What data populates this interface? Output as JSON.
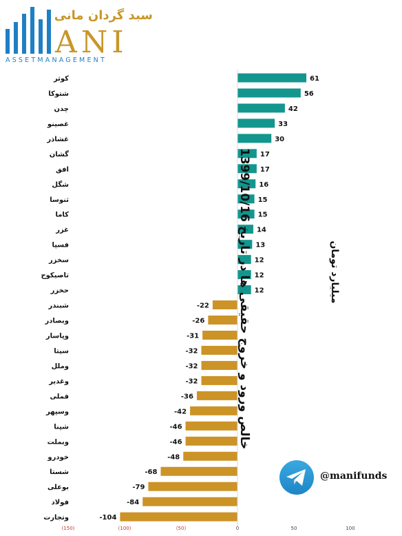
{
  "logo": {
    "persian_text": "سبد گردان مانی",
    "wordmark": "ANI",
    "tagline": "ASSETMANAGEMENT",
    "color": "#1e7fc4",
    "accent": "#c8962a"
  },
  "titles": {
    "main": "خالص ورود و خروج حقیقی ها در تاریخ 1399/10/16",
    "unit": "میلیارد تومان"
  },
  "social": {
    "icon": "telegram-icon",
    "handle": "@manifunds"
  },
  "colors": {
    "positive": "#13968e",
    "negative": "#cc9326",
    "axis_tick": "#c0392b"
  },
  "chart_data": {
    "type": "bar",
    "orientation": "horizontal",
    "categories": [
      "کوثر",
      "شتوکا",
      "چدن",
      "غصینو",
      "غشاذر",
      "گشان",
      "افق",
      "شگل",
      "ثنوسا",
      "کاما",
      "غزر",
      "فسپا",
      "سخزر",
      "تاصیکوح",
      "حخزر",
      "شبندر",
      "وبصادر",
      "وپاسار",
      "سیتا",
      "وملل",
      "وغدیر",
      "فملی",
      "وسپهر",
      "شپنا",
      "وبملت",
      "خودرو",
      "شستا",
      "بوعلی",
      "فولاد",
      "وتجارت"
    ],
    "values": [
      61,
      56,
      42,
      33,
      30,
      17,
      17,
      16,
      15,
      15,
      14,
      13,
      12,
      12,
      12,
      -22,
      -26,
      -31,
      -32,
      -32,
      -32,
      -36,
      -42,
      -46,
      -46,
      -48,
      -68,
      -79,
      -84,
      -104
    ],
    "value_labels": [
      "61",
      "56",
      "42",
      "33",
      "30",
      "17",
      "17",
      "16",
      "15",
      "15",
      "14",
      "13",
      "12",
      "12",
      "12",
      "-22",
      "-26",
      "-31",
      "-32",
      "-32",
      "-32",
      "-36",
      "-42",
      "-46",
      "-46",
      "-48",
      "-68",
      "-79",
      "-84",
      "-104"
    ],
    "xlim": [
      -150,
      100
    ],
    "xticks": [
      -150,
      -100,
      -50,
      0,
      50,
      100
    ],
    "xtick_labels": [
      "(150)",
      "(100)",
      "(50)",
      "0",
      "50",
      "100"
    ],
    "grid": false
  }
}
